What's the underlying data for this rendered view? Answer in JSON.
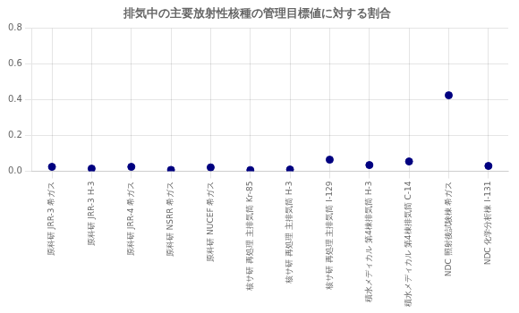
{
  "chart_data": {
    "type": "scatter",
    "title": "排気中の主要放射性核種の管理目標値に対する割合",
    "categories": [
      "原科研 JRR-3 希ガス",
      "原科研 JRR-3 H-3",
      "原科研 JRR-4 希ガス",
      "原科研 NSRR 希ガス",
      "原科研 NUCEF 希ガス",
      "核サ研 再処理 主排気筒 Kr-85",
      "核サ研 再処理 主排気筒 H-3",
      "核サ研 再処理 主排気筒 I-129",
      "積水メディカル 第4棟排気筒 H-3",
      "積水メディカル 第4棟排気筒 C-14",
      "NDC 照射後試験棟 希ガス",
      "NDC 化学分析棟 I-131"
    ],
    "values": [
      0.025,
      0.015,
      0.025,
      0.008,
      0.022,
      0.007,
      0.01,
      0.065,
      0.035,
      0.055,
      0.425,
      0.03
    ],
    "color": "#000080",
    "marker": "circle",
    "ylim": [
      0.0,
      0.8
    ],
    "yticks": [
      {
        "value": 0.0,
        "label": "0.0"
      },
      0.2,
      0.4,
      0.6,
      0.8
    ],
    "grid": true
  }
}
